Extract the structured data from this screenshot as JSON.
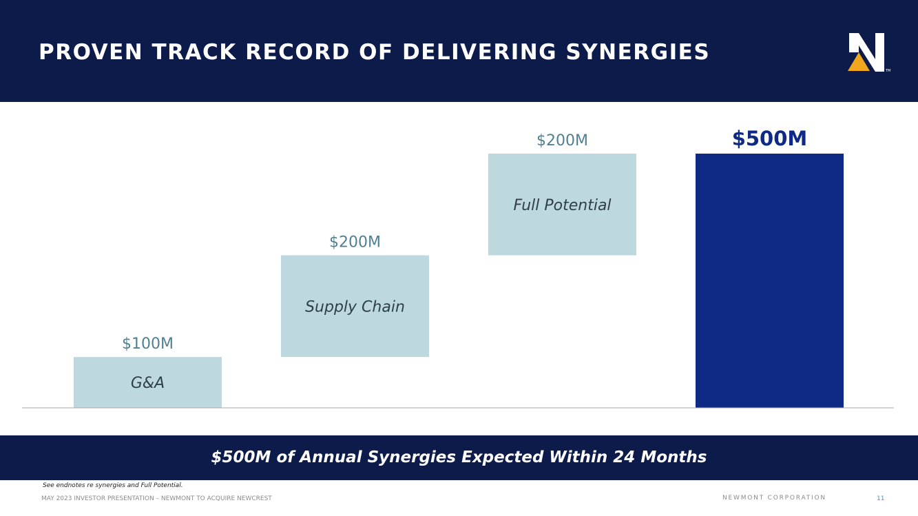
{
  "header": {
    "title": "PROVEN TRACK RECORD OF DELIVERING SYNERGIES"
  },
  "logo": {
    "icon": "newmont-n-logo-icon",
    "mark": "TM"
  },
  "colors": {
    "header_bg": "#0c1b4a",
    "step_bar": "#bed8e0",
    "total_bar": "#0f2a85",
    "step_label": "#4f7f92",
    "inner_label": "#2f3f48",
    "total_label": "#0f2a85"
  },
  "chart_data": {
    "type": "bar",
    "subtype": "waterfall",
    "unit": "$M",
    "categories": [
      "G&A",
      "Supply Chain",
      "Full Potential",
      ""
    ],
    "values": [
      100,
      200,
      200,
      500
    ],
    "value_labels": [
      "$100M",
      "$200M",
      "$200M",
      "$500M"
    ],
    "ylim": [
      0,
      500
    ],
    "grid": false,
    "legend": "none"
  },
  "banner": {
    "text": "$500M of Annual Synergies Expected Within 24 Months"
  },
  "endnote": "See endnotes re synergies and Full Potential.",
  "footer": {
    "left": "MAY 2023 INVESTOR PRESENTATION – NEWMONT TO ACQUIRE NEWCREST",
    "right": "NEWMONT CORPORATION",
    "page": "11"
  }
}
